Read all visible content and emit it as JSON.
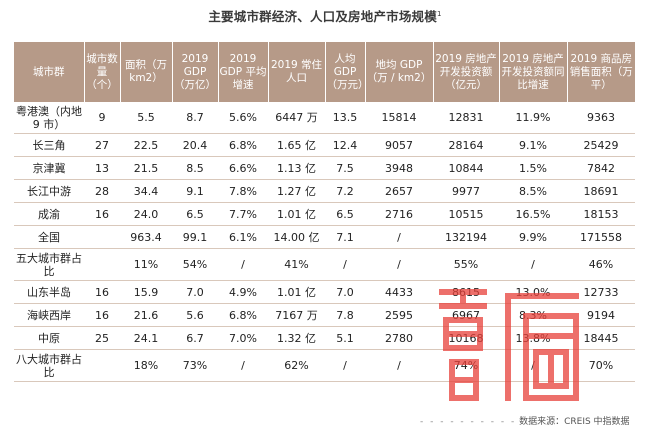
{
  "title": "主要城市群经济、人口及房地产市场规模",
  "title_note": "1",
  "table": {
    "headers": [
      "城市群",
      "城市数量（个）",
      "面积（万 km2）",
      "2019 GDP（万亿）",
      "2019 GDP 平均增速",
      "2019 常住人口",
      "人均 GDP（万元）",
      "地均 GDP（万 / km2）",
      "2019 房地产开发投资额（亿元）",
      "2019 房地产开发投资额同比增速",
      "2019 商品房销售面积（万平）"
    ],
    "rows": [
      [
        "粤港澳（内地 9 市）",
        "9",
        "5.5",
        "8.7",
        "5.6%",
        "6447 万",
        "13.5",
        "15814",
        "12831",
        "11.9%",
        "9363"
      ],
      [
        "长三角",
        "27",
        "22.5",
        "20.4",
        "6.8%",
        "1.65 亿",
        "12.4",
        "9057",
        "28164",
        "9.1%",
        "25429"
      ],
      [
        "京津冀",
        "13",
        "21.5",
        "8.5",
        "6.6%",
        "1.13 亿",
        "7.5",
        "3948",
        "10844",
        "1.5%",
        "7842"
      ],
      [
        "长江中游",
        "28",
        "34.4",
        "9.1",
        "7.8%",
        "1.27 亿",
        "7.2",
        "2657",
        "9977",
        "8.5%",
        "18691"
      ],
      [
        "成渝",
        "16",
        "24.0",
        "6.5",
        "7.7%",
        "1.01 亿",
        "6.5",
        "2716",
        "10515",
        "16.5%",
        "18153"
      ],
      [
        "全国",
        "",
        "963.4",
        "99.1",
        "6.1%",
        "14.00 亿",
        "7.1",
        "/",
        "132194",
        "9.9%",
        "171558"
      ],
      [
        "五大城市群占比",
        "",
        "11%",
        "54%",
        "/",
        "41%",
        "/",
        "/",
        "55%",
        "/",
        "46%"
      ],
      [
        "山东半岛",
        "16",
        "15.9",
        "7.0",
        "4.9%",
        "1.01 亿",
        "7.0",
        "4433",
        "8615",
        "13.0%",
        "12733"
      ],
      [
        "海峡西岸",
        "16",
        "21.6",
        "5.6",
        "6.8%",
        "7167 万",
        "7.8",
        "2595",
        "6967",
        "8.3%",
        "9194"
      ],
      [
        "中原",
        "25",
        "24.1",
        "6.7",
        "7.0%",
        "1.32 亿",
        "5.1",
        "2780",
        "10168",
        "13.8%",
        "18445"
      ],
      [
        "八大城市群占比",
        "",
        "18%",
        "73%",
        "/",
        "62%",
        "/",
        "/",
        "74%",
        "/",
        "70%"
      ]
    ]
  },
  "footer": {
    "dots": "- - - - - - - - - -",
    "source": "数据来源：CREIS 中指数据"
  },
  "colors": {
    "header_bg": "#b69a88",
    "row_line": "#d9c8bb",
    "watermark": "#e8413a"
  },
  "watermark_icon": "house-logo-icon"
}
